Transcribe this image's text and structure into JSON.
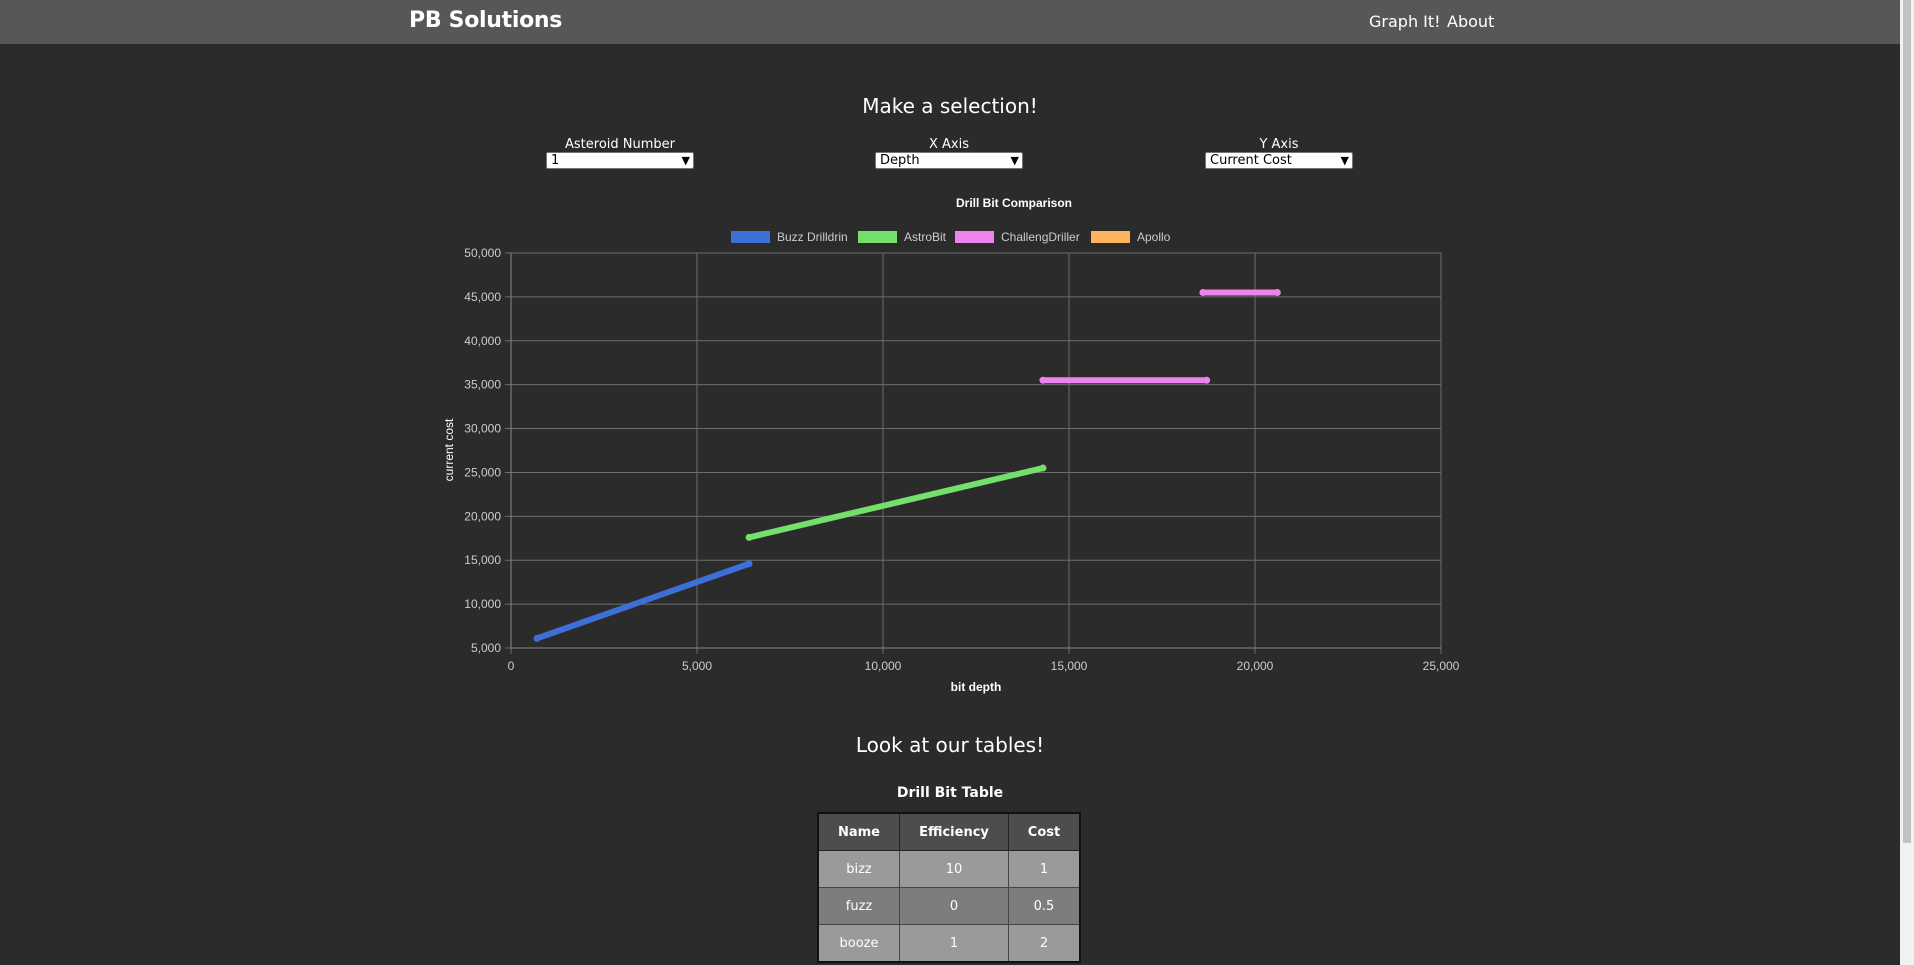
{
  "nav": {
    "brand": "PB Solutions",
    "links": [
      "Graph It!",
      "About"
    ]
  },
  "selection": {
    "heading": "Make a selection!",
    "selects": [
      {
        "label": "Asteroid Number",
        "value": "1"
      },
      {
        "label": "X Axis",
        "value": "Depth"
      },
      {
        "label": "Y Axis",
        "value": "Current Cost"
      }
    ]
  },
  "chart_data": {
    "type": "line",
    "title": "Drill Bit Comparison",
    "xlabel": "bit depth",
    "ylabel": "current cost",
    "xlim": [
      0,
      25000
    ],
    "ylim": [
      5000,
      50000
    ],
    "x_ticks": [
      "0",
      "5,000",
      "10,000",
      "15,000",
      "20,000",
      "25,000"
    ],
    "y_ticks": [
      "5,000",
      "10,000",
      "15,000",
      "20,000",
      "25,000",
      "30,000",
      "35,000",
      "40,000",
      "45,000",
      "50,000"
    ],
    "grid": true,
    "legend_position": "top",
    "series": [
      {
        "name": "Buzz Drilldrin",
        "color": "#3d6fd8",
        "segments": [
          [
            [
              700,
              6100
            ],
            [
              6400,
              14600
            ]
          ]
        ]
      },
      {
        "name": "AstroBit",
        "color": "#72e06a",
        "segments": [
          [
            [
              6400,
              17600
            ],
            [
              14300,
              25500
            ]
          ]
        ]
      },
      {
        "name": "ChallengDriller",
        "color": "#ee82ee",
        "segments": [
          [
            [
              14300,
              35500
            ],
            [
              18700,
              35500
            ]
          ],
          [
            [
              18600,
              45500
            ],
            [
              20600,
              45500
            ]
          ]
        ]
      },
      {
        "name": "Apollo",
        "color": "#fdb45c",
        "segments": []
      }
    ]
  },
  "tables": {
    "heading": "Look at our tables!",
    "title": "Drill Bit Table",
    "columns": [
      "Name",
      "Efficiency",
      "Cost"
    ],
    "rows": [
      [
        "bizz",
        "10",
        "1"
      ],
      [
        "fuzz",
        "0",
        "0.5"
      ],
      [
        "booze",
        "1",
        "2"
      ]
    ]
  }
}
